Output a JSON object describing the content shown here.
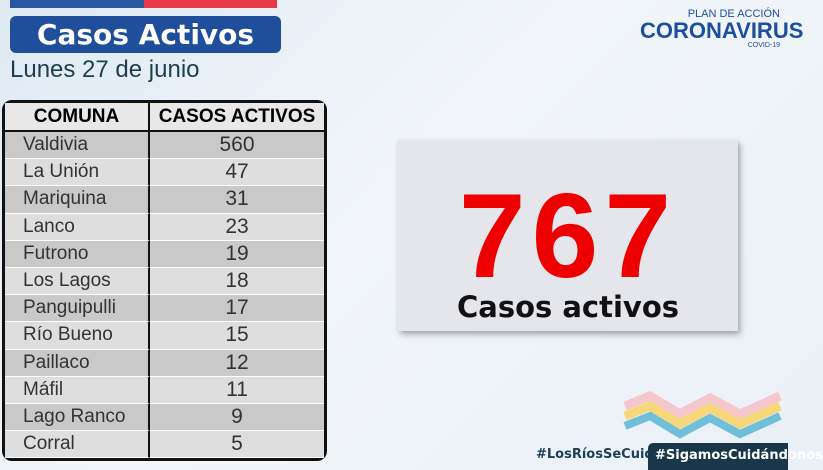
{
  "header": {
    "title": "Casos Activos",
    "date": "Lunes 27 de junio"
  },
  "logo": {
    "plan": "PLAN DE ACCIÓN",
    "name": "CORONAVIRUS",
    "sub": "COVID-19"
  },
  "table": {
    "headers": [
      "COMUNA",
      "CASOS ACTIVOS"
    ],
    "rows": [
      [
        "Valdivia",
        "560"
      ],
      [
        "La Unión",
        "47"
      ],
      [
        "Mariquina",
        "31"
      ],
      [
        "Lanco",
        "23"
      ],
      [
        "Futrono",
        "19"
      ],
      [
        "Los Lagos",
        "18"
      ],
      [
        "Panguipulli",
        "17"
      ],
      [
        "Río Bueno",
        "15"
      ],
      [
        "Paillaco",
        "12"
      ],
      [
        "Máfil",
        "11"
      ],
      [
        "Lago Ranco",
        "9"
      ],
      [
        "Corral",
        "5"
      ]
    ]
  },
  "total": {
    "value": "767",
    "label": "Casos activos",
    "color": "#ee0000"
  },
  "footer": {
    "tag1": "#LosRíosSeCuida",
    "tag2": "#SigamosCuidándonos"
  }
}
